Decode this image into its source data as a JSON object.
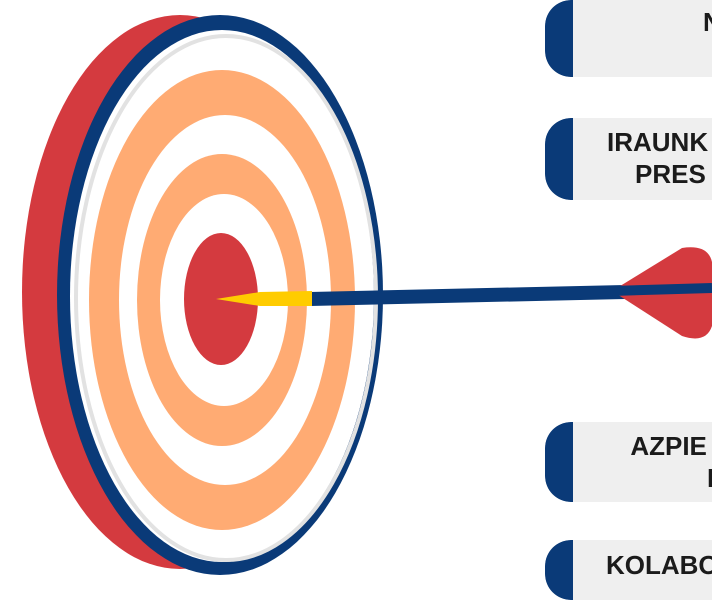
{
  "labels": [
    {
      "lines": [
        "N"
      ]
    },
    {
      "lines": [
        "IRAUNK",
        "PRES"
      ]
    },
    {
      "lines": [
        "AZPIE",
        "I"
      ]
    },
    {
      "lines": [
        "KOLABO"
      ]
    }
  ],
  "colors": {
    "navy": "#0a3a78",
    "red": "#d43a3f",
    "peach": "#ffab73",
    "white": "#ffffff",
    "gold": "#ffcc00",
    "card": "#efefef"
  },
  "icons": [
    "dartboard-target-icon",
    "arrow-icon"
  ]
}
